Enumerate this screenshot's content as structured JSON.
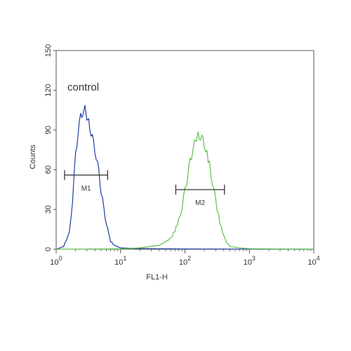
{
  "chart_data": {
    "type": "line",
    "xlabel": "FL1-H",
    "ylabel": "Counts",
    "x_scale": "log",
    "xlim": [
      1,
      10000
    ],
    "ylim": [
      0,
      150
    ],
    "x_ticks": [
      {
        "value": 1,
        "base": "10",
        "exp": "0"
      },
      {
        "value": 10,
        "base": "10",
        "exp": "1"
      },
      {
        "value": 100,
        "base": "10",
        "exp": "2"
      },
      {
        "value": 1000,
        "base": "10",
        "exp": "3"
      },
      {
        "value": 10000,
        "base": "10",
        "exp": "4"
      }
    ],
    "y_ticks": [
      0,
      30,
      60,
      90,
      120,
      150
    ],
    "grid": false,
    "annotation": "control",
    "series": [
      {
        "color": "#1f3fa0",
        "x": [
          1.0,
          1.3,
          1.6,
          1.8,
          2.0,
          2.2,
          2.4,
          2.6,
          2.8,
          3.0,
          3.2,
          3.5,
          3.8,
          4.2,
          4.6,
          5.0,
          5.5,
          6.0,
          6.5,
          7.0,
          8.0,
          10,
          20,
          50,
          100,
          1000,
          10000
        ],
        "y": [
          0,
          2,
          12,
          38,
          70,
          90,
          100,
          104,
          106,
          100,
          96,
          88,
          80,
          70,
          58,
          44,
          30,
          20,
          12,
          6,
          3,
          1,
          0.5,
          0.3,
          0.2,
          0.1,
          0
        ]
      },
      {
        "color": "#5fc14a",
        "x": [
          1.0,
          10,
          20,
          40,
          60,
          70,
          80,
          90,
          100,
          110,
          120,
          130,
          140,
          150,
          160,
          175,
          190,
          210,
          240,
          270,
          300,
          350,
          400,
          450,
          500,
          700,
          1000,
          10000
        ],
        "y": [
          0,
          0.3,
          1,
          3,
          8,
          14,
          22,
          32,
          44,
          56,
          66,
          74,
          80,
          84,
          86,
          85,
          82,
          76,
          64,
          50,
          36,
          20,
          10,
          5,
          2,
          1,
          0.4,
          0
        ]
      }
    ],
    "gates": [
      {
        "label": "M1",
        "x_start": 1.35,
        "x_end": 6.3,
        "y": 56
      },
      {
        "label": "M2",
        "x_start": 72,
        "x_end": 410,
        "y": 45
      }
    ]
  }
}
